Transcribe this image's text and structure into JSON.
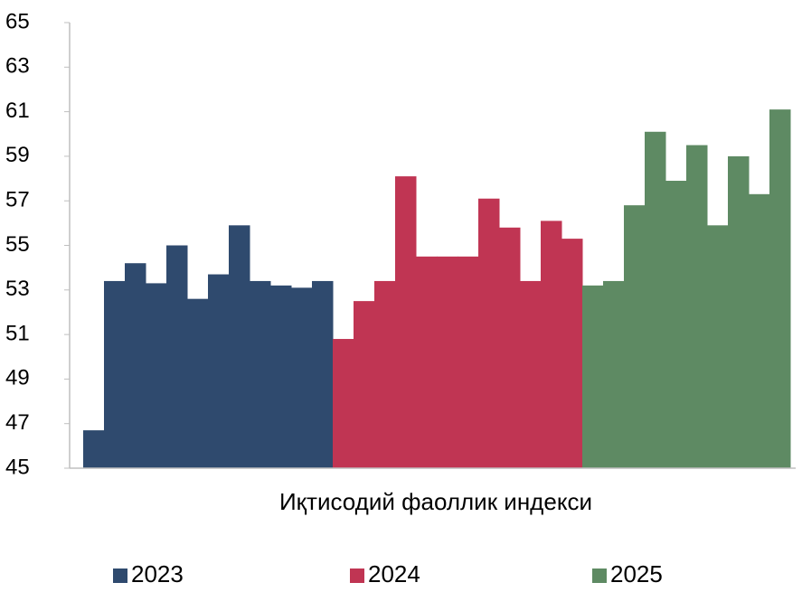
{
  "chart_data": {
    "type": "bar",
    "x_label": "Иқтисодий фаоллик индекси",
    "ylim": [
      45,
      65
    ],
    "yticks": [
      45,
      47,
      49,
      51,
      53,
      55,
      57,
      59,
      61,
      63,
      65
    ],
    "grid": false,
    "legend": "bottom",
    "series": [
      {
        "name": "2023",
        "color": "#2f4a6e",
        "values": [
          46.7,
          53.4,
          54.2,
          53.3,
          55.0,
          52.6,
          53.7,
          55.9,
          53.4,
          53.2,
          53.1,
          53.4
        ]
      },
      {
        "name": "2024",
        "color": "#c03553",
        "values": [
          50.8,
          52.5,
          53.4,
          58.1,
          54.5,
          54.5,
          54.5,
          57.1,
          55.8,
          53.4,
          56.1,
          55.3
        ]
      },
      {
        "name": "2025",
        "color": "#5e8a63",
        "values": [
          53.2,
          53.4,
          56.8,
          60.1,
          57.9,
          59.5,
          55.9,
          59.0,
          57.3,
          61.1
        ]
      }
    ]
  }
}
